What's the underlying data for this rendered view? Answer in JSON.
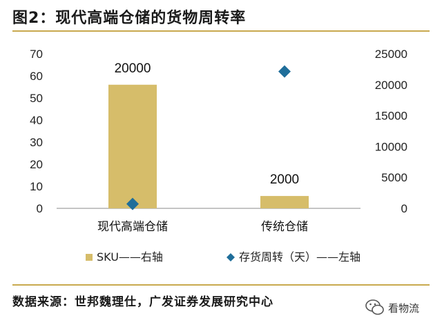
{
  "title": "图2：现代高端仓储的货物周转率",
  "source": "数据来源：世邦魏理仕，广发证券发展研究中心",
  "watermark": {
    "text": "看物流",
    "icon": "wechat-icon"
  },
  "colors": {
    "bar": "#d6bd6a",
    "diamond": "#1f6e9a",
    "rule": "#c8a94e",
    "axis": "#888888"
  },
  "chart_data": {
    "type": "bar",
    "categories": [
      "现代高端仓储",
      "传统仓储"
    ],
    "series": [
      {
        "name": "SKU——右轴",
        "type": "bar",
        "axis": "right",
        "values": [
          20000,
          2000
        ],
        "data_labels": [
          "20000",
          "2000"
        ]
      },
      {
        "name": "存货周转（天）——左轴",
        "type": "scatter",
        "marker": "diamond",
        "axis": "left",
        "values": [
          2,
          62
        ]
      }
    ],
    "y_left": {
      "lim": [
        0,
        70
      ],
      "ticks": [
        0,
        10,
        20,
        30,
        40,
        50,
        60,
        70
      ]
    },
    "y_right": {
      "lim": [
        0,
        25000
      ],
      "ticks": [
        0,
        5000,
        10000,
        15000,
        20000,
        25000
      ]
    },
    "grid": false,
    "legend_position": "bottom"
  }
}
